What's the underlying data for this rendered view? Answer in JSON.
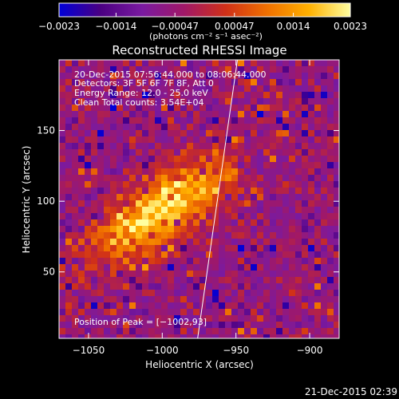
{
  "chart_data": {
    "type": "heatmap",
    "title": "Reconstructed RHESSI Image",
    "xlabel": "Heliocentric X (arcsec)",
    "ylabel": "Heliocentric Y (arcsec)",
    "xlim": [
      -1070,
      -880
    ],
    "ylim": [
      3,
      200
    ],
    "x_ticks": [
      {
        "v": -1050,
        "label": "−1050"
      },
      {
        "v": -1000,
        "label": "−1000"
      },
      {
        "v": -950,
        "label": "−950"
      },
      {
        "v": -900,
        "label": "−900"
      }
    ],
    "y_ticks": [
      {
        "v": 50,
        "label": "50"
      },
      {
        "v": 100,
        "label": "100"
      },
      {
        "v": 150,
        "label": "150"
      }
    ],
    "colorbar": {
      "min": -0.0023,
      "max": 0.0023,
      "tick_values": [
        -0.0023,
        -0.0014,
        -0.00047,
        0.00047,
        0.0014,
        0.0023
      ],
      "tick_labels": [
        "−0.0023",
        "−0.0014",
        "−0.00047",
        "0.00047",
        "0.0014",
        "0.0023"
      ],
      "units_label": "(photons cm⁻² s⁻¹ asec⁻²)",
      "colors": [
        "#0000d8",
        "#4b0082",
        "#7a1aa0",
        "#a01868",
        "#d03018",
        "#f07000",
        "#ffb000",
        "#ffffa0"
      ]
    },
    "info_lines": [
      "20‐Dec‐2015 07:56:44.000 to 08:06:44.000",
      "Detectors: 3F 5F 6F 7F 8F, Att 0",
      "Energy Range: 12.0 ‐ 25.0 keV",
      "Clean    Total counts: 3.54E+04"
    ],
    "peak_label": "Position of Peak = [−1002,93]",
    "peak": {
      "x": -1002,
      "y": 93
    },
    "limb_line": {
      "x1": -976,
      "y1": 3,
      "x2": -949,
      "y2": 200,
      "color": "#ffffff"
    },
    "grid": false
  },
  "timestamp": "21‐Dec‐2015 02:39"
}
